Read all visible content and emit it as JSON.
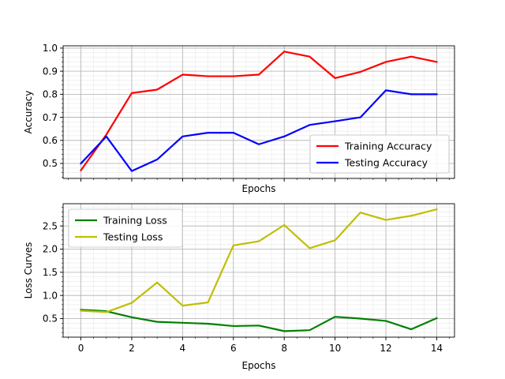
{
  "chart_data": [
    {
      "type": "line",
      "title": "",
      "xlabel": "Epochs",
      "ylabel": "Accuracy",
      "xlim": [
        -0.7,
        14.7
      ],
      "ylim": [
        0.435,
        1.01
      ],
      "y_ticks": [
        {
          "value": 0.5,
          "label": "0.5"
        },
        {
          "value": 0.6,
          "label": "0.6"
        },
        {
          "value": 0.7,
          "label": "0.7"
        },
        {
          "value": 0.8,
          "label": "0.8"
        },
        {
          "value": 0.9,
          "label": "0.9"
        },
        {
          "value": 1.0,
          "label": "1.0"
        }
      ],
      "x_ticks": [
        0,
        2,
        4,
        6,
        8,
        10,
        12,
        14
      ],
      "x_ticks_labeled": false,
      "grid": true,
      "minor_grid": true,
      "legend_position": "lower-right",
      "x": [
        0,
        1,
        2,
        3,
        4,
        5,
        6,
        7,
        8,
        9,
        10,
        11,
        12,
        13,
        14
      ],
      "series": [
        {
          "name": "Training Accuracy",
          "color": "#ff0000",
          "values": [
            0.47,
            0.625,
            0.805,
            0.82,
            0.885,
            0.878,
            0.878,
            0.885,
            0.985,
            0.963,
            0.87,
            0.897,
            0.94,
            0.963,
            0.94
          ]
        },
        {
          "name": "Testing Accuracy",
          "color": "#0000ff",
          "values": [
            0.5,
            0.617,
            0.467,
            0.517,
            0.617,
            0.633,
            0.633,
            0.583,
            0.617,
            0.667,
            0.683,
            0.7,
            0.817,
            0.8,
            0.8
          ]
        }
      ]
    },
    {
      "type": "line",
      "title": "",
      "xlabel": "Epochs",
      "ylabel": "Loss Curves",
      "xlim": [
        -0.7,
        14.7
      ],
      "ylim": [
        0.1,
        2.98
      ],
      "y_ticks": [
        {
          "value": 0.5,
          "label": "0.5"
        },
        {
          "value": 1.0,
          "label": "1.0"
        },
        {
          "value": 1.5,
          "label": "1.5"
        },
        {
          "value": 2.0,
          "label": "2.0"
        },
        {
          "value": 2.5,
          "label": "2.5"
        }
      ],
      "x_ticks": [
        0,
        2,
        4,
        6,
        8,
        10,
        12,
        14
      ],
      "x_tick_labels": [
        "0",
        "2",
        "4",
        "6",
        "8",
        "10",
        "12",
        "14"
      ],
      "x_ticks_labeled": true,
      "grid": true,
      "minor_grid": true,
      "legend_position": "upper-left",
      "x": [
        0,
        1,
        2,
        3,
        4,
        5,
        6,
        7,
        8,
        9,
        10,
        11,
        12,
        13,
        14
      ],
      "series": [
        {
          "name": "Training Loss",
          "color": "#008000",
          "values": [
            0.69,
            0.66,
            0.53,
            0.43,
            0.41,
            0.39,
            0.34,
            0.35,
            0.23,
            0.25,
            0.54,
            0.5,
            0.45,
            0.27,
            0.51
          ]
        },
        {
          "name": "Testing Loss",
          "color": "#bfbf00",
          "values": [
            0.67,
            0.64,
            0.84,
            1.28,
            0.78,
            0.85,
            2.08,
            2.17,
            2.52,
            2.02,
            2.19,
            2.79,
            2.63,
            2.72,
            2.86
          ]
        }
      ]
    }
  ]
}
